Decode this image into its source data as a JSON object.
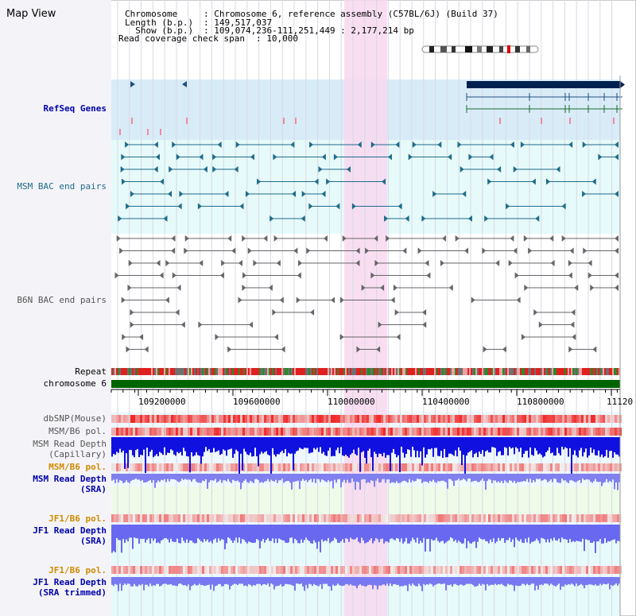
{
  "app": {
    "title": "Map View"
  },
  "header": {
    "chromosome_key": "Chromosome",
    "chromosome_val": ": Chromosome 6, reference assembly (C57BL/6J) (Build 37)",
    "length_key": "Length (b.p.)",
    "length_val": ": 149,517,037",
    "show_key": "  Show (b.p.)",
    "show_val": ": 109,074,236-111,251,449 : 2,177,214 bp",
    "span_key": "Read coverage check span",
    "span_val": ": 10,000"
  },
  "tracks": {
    "refseq": "RefSeq Genes",
    "msm_bac": "MSM BAC end pairs",
    "b6n_bac": "B6N BAC end pairs",
    "repeat": "Repeat",
    "chromosome": "chromosome 6",
    "dbsnp": "dbSNP(Mouse)",
    "msm_pol1": "MSM/B6 pol.",
    "msm_depth_cap_1": "MSM Read Depth",
    "msm_depth_cap_2": "(Capillary)",
    "msm_pol2": "MSM/B6 pol.",
    "msm_depth_sra_1": "MSM Read Depth",
    "msm_depth_sra_2": "(SRA)",
    "jf1_pol1": "JF1/B6 pol.",
    "jf1_depth_sra_1": "JF1 Read Depth",
    "jf1_depth_sra_2": "(SRA)",
    "jf1_pol2": "JF1/B6 pol.",
    "jf1_depth_trim_1": "JF1 Read Depth",
    "jf1_depth_trim_2": "(SRA trimmed)"
  },
  "axis": {
    "ticks": [
      "109200000",
      "109600000",
      "110000000",
      "110400000",
      "110800000",
      "11120"
    ]
  },
  "colors": {
    "refseq_bg": "#d8ecf8",
    "bac_bg": "#e6fafa",
    "highlight": "#f8d8f0",
    "chrom": "#006400",
    "teal": "#1f6b8a",
    "gray": "#666666",
    "label_blue": "#0000aa",
    "label_orange": "#d08a00"
  }
}
